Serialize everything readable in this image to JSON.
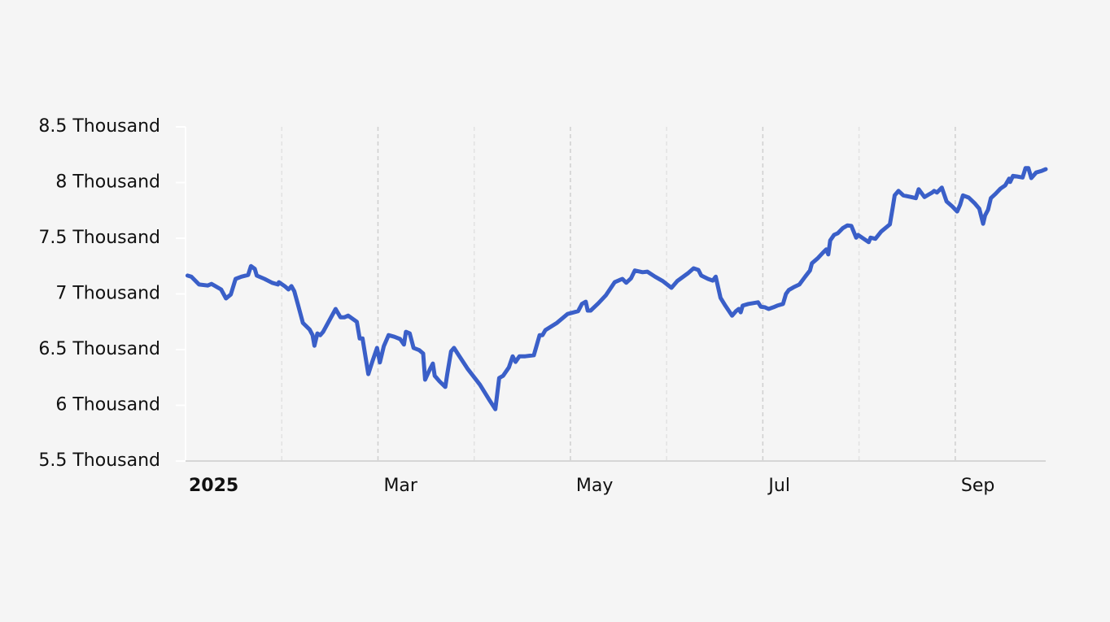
{
  "chart_data": {
    "type": "line",
    "x": [
      1.02,
      1.06,
      1.14,
      1.23,
      1.27,
      1.31,
      1.37,
      1.42,
      1.47,
      1.52,
      1.58,
      1.65,
      1.68,
      1.72,
      1.74,
      1.82,
      1.9,
      1.96,
      1.97,
      2.03,
      2.07,
      2.1,
      2.13,
      2.17,
      2.22,
      2.29,
      2.32,
      2.34,
      2.37,
      2.4,
      2.43,
      2.5,
      2.56,
      2.61,
      2.65,
      2.69,
      2.78,
      2.81,
      2.84,
      2.9,
      2.94,
      2.99,
      3.02,
      3.06,
      3.11,
      3.17,
      3.23,
      3.27,
      3.29,
      3.33,
      3.37,
      3.43,
      3.47,
      3.49,
      3.54,
      3.57,
      3.59,
      3.64,
      3.7,
      3.72,
      3.76,
      3.79,
      3.85,
      3.93,
      4.06,
      4.16,
      4.22,
      4.26,
      4.3,
      4.36,
      4.4,
      4.43,
      4.47,
      4.53,
      4.62,
      4.68,
      4.71,
      4.74,
      4.86,
      4.97,
      5.08,
      5.12,
      5.16,
      5.18,
      5.21,
      5.29,
      5.37,
      5.46,
      5.54,
      5.58,
      5.63,
      5.67,
      5.75,
      5.8,
      5.88,
      5.96,
      6.05,
      6.11,
      6.22,
      6.28,
      6.33,
      6.36,
      6.43,
      6.48,
      6.51,
      6.56,
      6.61,
      6.68,
      6.72,
      6.75,
      6.77,
      6.79,
      6.85,
      6.95,
      6.98,
      7.02,
      7.06,
      7.11,
      7.15,
      7.21,
      7.24,
      7.27,
      7.32,
      7.38,
      7.44,
      7.49,
      7.51,
      7.57,
      7.63,
      7.66,
      7.68,
      7.7,
      7.74,
      7.78,
      7.83,
      7.88,
      7.92,
      7.97,
      7.99,
      8.1,
      8.12,
      8.17,
      8.23,
      8.32,
      8.35,
      8.37,
      8.41,
      8.46,
      8.54,
      8.59,
      8.62,
      8.68,
      8.76,
      8.78,
      8.81,
      8.86,
      8.91,
      8.97,
      9.02,
      9.05,
      9.08,
      9.14,
      9.2,
      9.25,
      9.29,
      9.31,
      9.34,
      9.37,
      9.42,
      9.47,
      9.52,
      9.56,
      9.57,
      9.6,
      9.64,
      9.7,
      9.73,
      9.76,
      9.79,
      9.84,
      9.9,
      9.94
    ],
    "series": [
      {
        "color": "#3a5fc8",
        "values": [
          7165,
          7155,
          7085,
          7075,
          7090,
          7070,
          7040,
          6960,
          6995,
          7135,
          7155,
          7170,
          7250,
          7225,
          7165,
          7135,
          7100,
          7085,
          7105,
          7070,
          7040,
          7070,
          7025,
          6900,
          6740,
          6680,
          6630,
          6535,
          6645,
          6630,
          6660,
          6770,
          6865,
          6790,
          6790,
          6805,
          6750,
          6600,
          6600,
          6280,
          6390,
          6515,
          6385,
          6530,
          6630,
          6615,
          6595,
          6545,
          6660,
          6645,
          6515,
          6495,
          6465,
          6230,
          6325,
          6375,
          6265,
          6215,
          6165,
          6280,
          6485,
          6515,
          6435,
          6330,
          6185,
          6045,
          5965,
          6245,
          6265,
          6340,
          6440,
          6390,
          6440,
          6440,
          6450,
          6630,
          6630,
          6675,
          6740,
          6820,
          6845,
          6910,
          6930,
          6850,
          6850,
          6915,
          6990,
          7105,
          7135,
          7100,
          7140,
          7210,
          7195,
          7200,
          7155,
          7115,
          7055,
          7115,
          7185,
          7230,
          7215,
          7165,
          7135,
          7120,
          7155,
          6965,
          6895,
          6805,
          6845,
          6865,
          6835,
          6895,
          6910,
          6925,
          6885,
          6880,
          6865,
          6880,
          6895,
          6910,
          7000,
          7035,
          7060,
          7085,
          7155,
          7210,
          7275,
          7320,
          7375,
          7400,
          7355,
          7480,
          7530,
          7545,
          7590,
          7615,
          7610,
          7505,
          7530,
          7465,
          7505,
          7495,
          7560,
          7625,
          7775,
          7885,
          7925,
          7885,
          7870,
          7860,
          7940,
          7870,
          7910,
          7925,
          7910,
          7955,
          7830,
          7785,
          7740,
          7800,
          7885,
          7865,
          7815,
          7765,
          7630,
          7705,
          7755,
          7860,
          7900,
          7945,
          7975,
          8035,
          8005,
          8060,
          8055,
          8045,
          8130,
          8130,
          8040,
          8090,
          8105,
          8120
        ]
      }
    ],
    "xlim": [
      1,
      9.94
    ],
    "xticks": [
      {
        "value": 1,
        "label": "2025"
      },
      {
        "value": 3,
        "label": "Mar"
      },
      {
        "value": 5,
        "label": "May"
      },
      {
        "value": 7,
        "label": "Jul"
      },
      {
        "value": 9,
        "label": "Sep"
      }
    ],
    "xminor": [
      2,
      4,
      6,
      8
    ],
    "ylim": [
      5500,
      8500
    ],
    "yticks": [
      {
        "value": 5500,
        "label": "5.5 Thousand"
      },
      {
        "value": 6000,
        "label": "6 Thousand"
      },
      {
        "value": 6500,
        "label": "6.5 Thousand"
      },
      {
        "value": 7000,
        "label": "7 Thousand"
      },
      {
        "value": 7500,
        "label": "7.5 Thousand"
      },
      {
        "value": 8000,
        "label": "8 Thousand"
      },
      {
        "value": 8500,
        "label": "8.5 Thousand"
      }
    ]
  }
}
